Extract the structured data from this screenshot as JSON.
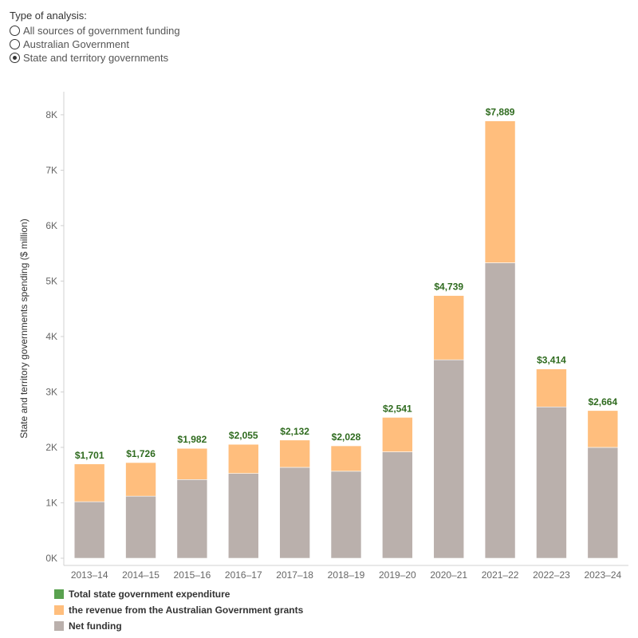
{
  "filter": {
    "title": "Type of analysis:",
    "options": [
      {
        "label": "All sources of government funding",
        "selected": false
      },
      {
        "label": "Australian Government",
        "selected": false
      },
      {
        "label": "State and territory governments",
        "selected": true
      }
    ]
  },
  "colors": {
    "net": "#bab0ac",
    "grants": "#ffbe7d",
    "total": "#59a14f",
    "total_label": "#2f6b1f",
    "axis": "#d0d0d0",
    "tick_text": "#666666"
  },
  "legend": [
    {
      "label": "Total state government expenditure",
      "color": "#59a14f"
    },
    {
      "label": "the revenue from the Australian Government grants",
      "color": "#ffbe7d"
    },
    {
      "label": "Net funding",
      "color": "#bab0ac"
    }
  ],
  "chart_data": {
    "type": "bar",
    "stacked": true,
    "ylabel": "State and territory governments spending ($ million)",
    "xlabel": "",
    "ylim": [
      0,
      8600
    ],
    "yticks": [
      0,
      1000,
      2000,
      3000,
      4000,
      5000,
      6000,
      7000,
      8000
    ],
    "ytick_labels": [
      "0K",
      "1K",
      "2K",
      "3K",
      "4K",
      "5K",
      "6K",
      "7K",
      "8K"
    ],
    "categories": [
      "2013–14",
      "2014–15",
      "2015–16",
      "2016–17",
      "2017–18",
      "2018–19",
      "2019–20",
      "2020–21",
      "2021–22",
      "2022–23",
      "2023–24"
    ],
    "series": [
      {
        "name": "Net funding",
        "values": [
          1020,
          1120,
          1420,
          1530,
          1640,
          1570,
          1920,
          3580,
          5330,
          2730,
          2000
        ]
      },
      {
        "name": "the revenue from the Australian Government grants",
        "values": [
          681,
          606,
          562,
          525,
          492,
          458,
          621,
          1159,
          2559,
          684,
          664
        ]
      }
    ],
    "totals": [
      1701,
      1726,
      1982,
      2055,
      2132,
      2028,
      2541,
      4739,
      7889,
      3414,
      2664
    ],
    "total_labels": [
      "$1,701",
      "$1,726",
      "$1,982",
      "$2,055",
      "$2,132",
      "$2,028",
      "$2,541",
      "$4,739",
      "$7,889",
      "$3,414",
      "$2,664"
    ],
    "legend_position": "bottom-left",
    "grid": false
  }
}
